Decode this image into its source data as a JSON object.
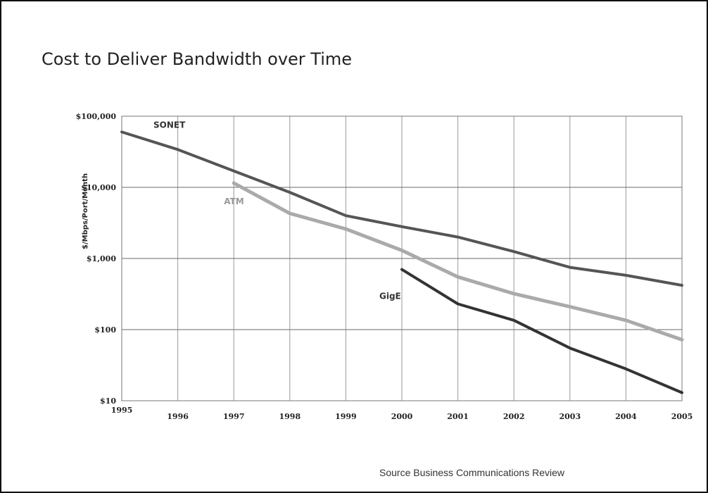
{
  "slide": {
    "title": "Cost to Deliver Bandwidth over Time",
    "source": "Source Business Communications Review"
  },
  "chart_data": {
    "type": "line",
    "title": "",
    "xlabel": "",
    "ylabel": "$/Mbps/Port/Month",
    "y_scale": "log",
    "ylim": [
      10,
      100000
    ],
    "xlim": [
      1995,
      2005
    ],
    "grid": true,
    "legend": "inline labels",
    "x_ticks": [
      "1995",
      "1996",
      "1997",
      "1998",
      "1999",
      "2000",
      "2001",
      "2002",
      "2003",
      "2004",
      "2005"
    ],
    "y_ticks": [
      {
        "value": 100000,
        "label": "$100,000"
      },
      {
        "value": 10000,
        "label": "$10,000"
      },
      {
        "value": 1000,
        "label": "$1,000"
      },
      {
        "value": 100,
        "label": "$100"
      },
      {
        "value": 10,
        "label": "$10"
      }
    ],
    "series": [
      {
        "name": "SONET",
        "color": "#555555",
        "x": [
          1995,
          1996,
          1997,
          1998,
          1999,
          2000,
          2001,
          2002,
          2003,
          2004,
          2005
        ],
        "values": [
          60000,
          34000,
          17000,
          8500,
          4000,
          2800,
          2000,
          1250,
          750,
          580,
          420
        ]
      },
      {
        "name": "ATM",
        "color": "#aaaaaa",
        "x": [
          1997,
          1998,
          1999,
          2000,
          2001,
          2002,
          2003,
          2004,
          2005
        ],
        "values": [
          11500,
          4300,
          2600,
          1300,
          550,
          320,
          210,
          135,
          72
        ]
      },
      {
        "name": "GigE",
        "color": "#333333",
        "x": [
          2000,
          2001,
          2002,
          2003,
          2004,
          2005
        ],
        "values": [
          700,
          230,
          135,
          55,
          28,
          13
        ]
      }
    ]
  }
}
